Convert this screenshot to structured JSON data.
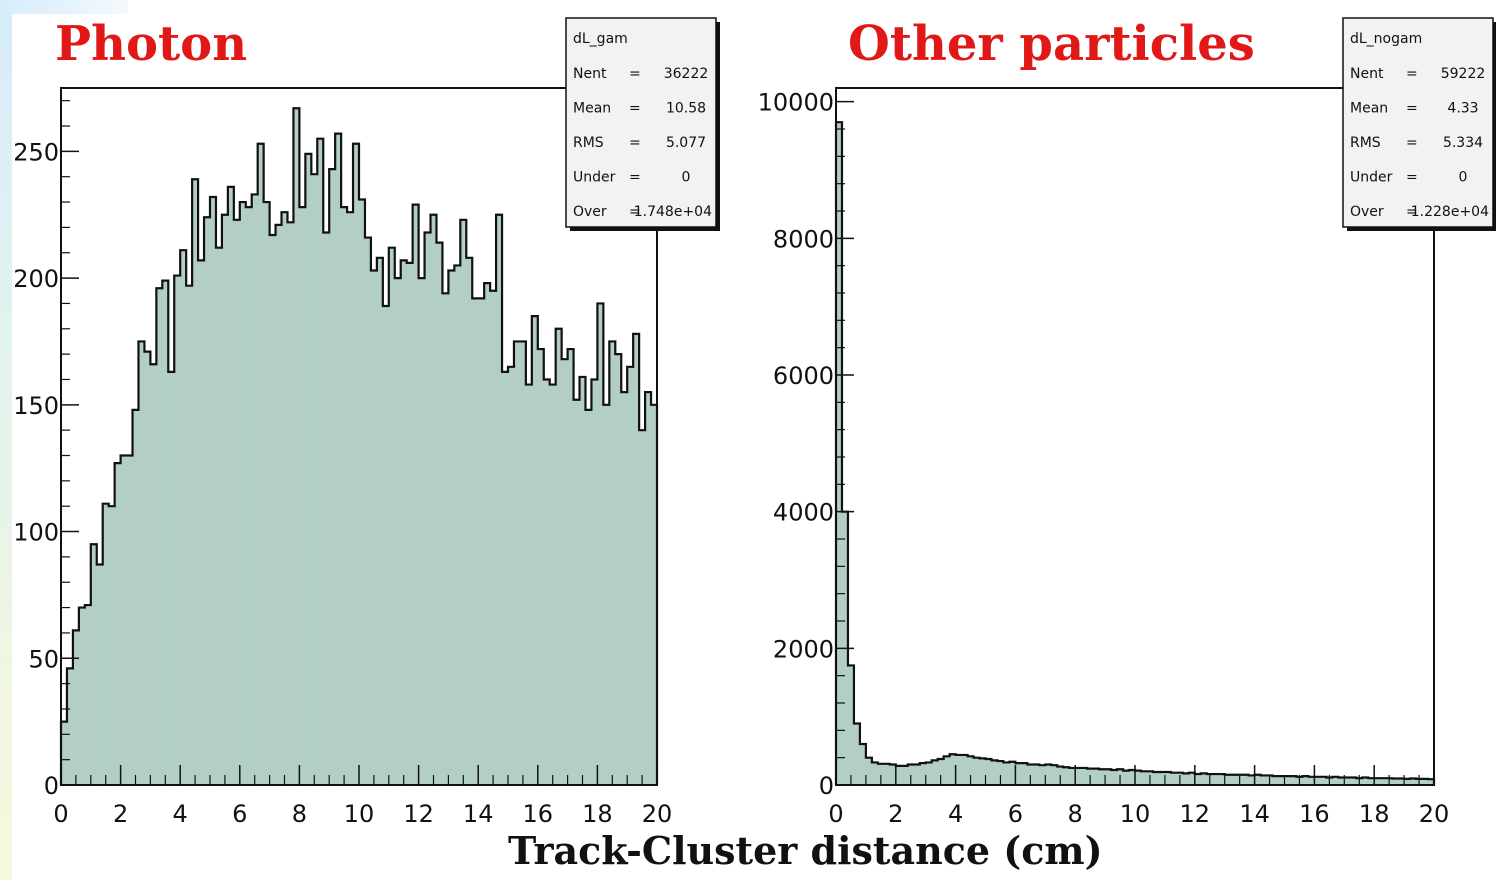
{
  "chart_data": [
    {
      "type": "bar",
      "title": "Photon",
      "xlabel": "Track-Cluster distance (cm)",
      "xlim": [
        0,
        20
      ],
      "ylim": [
        0,
        275
      ],
      "x_ticks": [
        "0",
        "2",
        "4",
        "6",
        "8",
        "10",
        "12",
        "14",
        "16",
        "18",
        "20"
      ],
      "y_ticks": [
        "0",
        "50",
        "100",
        "150",
        "200",
        "250"
      ],
      "bin_width": 0.2,
      "values": [
        25,
        46,
        61,
        70,
        71,
        95,
        87,
        111,
        110,
        127,
        130,
        130,
        148,
        175,
        171,
        166,
        196,
        199,
        163,
        201,
        211,
        197,
        239,
        207,
        224,
        232,
        212,
        225,
        236,
        223,
        230,
        228,
        233,
        253,
        230,
        217,
        221,
        226,
        222,
        267,
        228,
        249,
        241,
        255,
        218,
        243,
        257,
        228,
        226,
        253,
        231,
        216,
        203,
        208,
        189,
        212,
        200,
        207,
        206,
        229,
        200,
        218,
        225,
        214,
        194,
        203,
        205,
        223,
        208,
        192,
        192,
        198,
        195,
        225,
        163,
        165,
        175,
        175,
        158,
        185,
        172,
        160,
        158,
        180,
        168,
        172,
        152,
        161,
        148,
        160,
        190,
        150,
        175,
        170,
        155,
        165,
        178,
        140,
        155,
        150
      ],
      "fill_color": "#b3cfc5",
      "stats": {
        "name": "dL_gam",
        "rows": [
          {
            "label": "Nent",
            "sep": "=",
            "value": "36222"
          },
          {
            "label": "Mean",
            "sep": "=",
            "value": "10.58"
          },
          {
            "label": "RMS",
            "sep": "=",
            "value": "5.077"
          },
          {
            "label": "Under",
            "sep": "=",
            "value": "0"
          },
          {
            "label": "Over",
            "sep": "=",
            "value": "1.748e+04"
          }
        ]
      }
    },
    {
      "type": "bar",
      "title": "Other particles",
      "xlabel": "Track-Cluster distance (cm)",
      "xlim": [
        0,
        20
      ],
      "ylim": [
        0,
        10200
      ],
      "x_ticks": [
        "0",
        "2",
        "4",
        "6",
        "8",
        "10",
        "12",
        "14",
        "16",
        "18",
        "20"
      ],
      "y_ticks": [
        "0",
        "2000",
        "4000",
        "6000",
        "8000",
        "10000"
      ],
      "bin_width": 0.2,
      "values": [
        9700,
        4000,
        1750,
        900,
        600,
        400,
        330,
        310,
        310,
        300,
        280,
        280,
        300,
        300,
        320,
        330,
        360,
        380,
        420,
        450,
        440,
        440,
        420,
        400,
        390,
        380,
        360,
        350,
        330,
        340,
        320,
        320,
        300,
        300,
        290,
        300,
        290,
        270,
        260,
        250,
        250,
        250,
        240,
        240,
        230,
        230,
        220,
        230,
        210,
        220,
        210,
        200,
        200,
        190,
        190,
        190,
        180,
        180,
        170,
        180,
        160,
        170,
        160,
        160,
        160,
        150,
        150,
        150,
        150,
        140,
        150,
        140,
        140,
        130,
        130,
        130,
        130,
        120,
        130,
        120,
        120,
        120,
        110,
        120,
        110,
        110,
        110,
        100,
        110,
        100,
        100,
        100,
        100,
        95,
        95,
        90,
        95,
        90,
        90,
        85
      ],
      "fill_color": "#b3cfc5",
      "stats": {
        "name": "dL_nogam",
        "rows": [
          {
            "label": "Nent",
            "sep": "=",
            "value": "59222"
          },
          {
            "label": "Mean",
            "sep": "=",
            "value": "4.33"
          },
          {
            "label": "RMS",
            "sep": "=",
            "value": "5.334"
          },
          {
            "label": "Under",
            "sep": "=",
            "value": "0"
          },
          {
            "label": "Over",
            "sep": "=",
            "value": "1.228e+04"
          }
        ]
      }
    }
  ],
  "shared_xlabel": "Track-Cluster distance (cm)"
}
